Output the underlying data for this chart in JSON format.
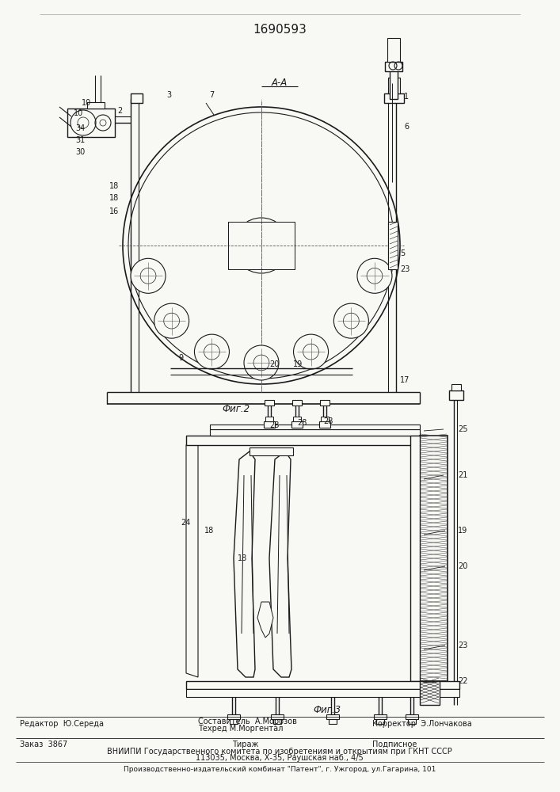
{
  "patent_number": "1690593",
  "fig2_label": "Фиг.2",
  "fig3_label": "Фиг.3",
  "section_label": "А-А",
  "editor_line": "Редактор  Ю.Середа",
  "composer_line": "Составитель  А.Морозов",
  "techred_line": "Техред М.Моргентал",
  "corrector_line": "Корректор  Э.Лончакова",
  "zakaz_line": "Заказ  3867",
  "tirazh_line": "Тираж",
  "podpisnoe_line": "Подписное",
  "vniipmi_line": "ВНИИПИ Государственного комитета по изобретениям и открытиям при ГКНТ СССР",
  "address_line": "113035, Москва, Х-35, Раушская наб., 4/5",
  "factory_line": "Производственно-издательский комбинат \"Патент\", г. Ужгород, ул.Гагарина, 101",
  "bg_color": "#f8f8f5",
  "line_color": "#1a1a1a",
  "text_color": "#1a1a1a"
}
